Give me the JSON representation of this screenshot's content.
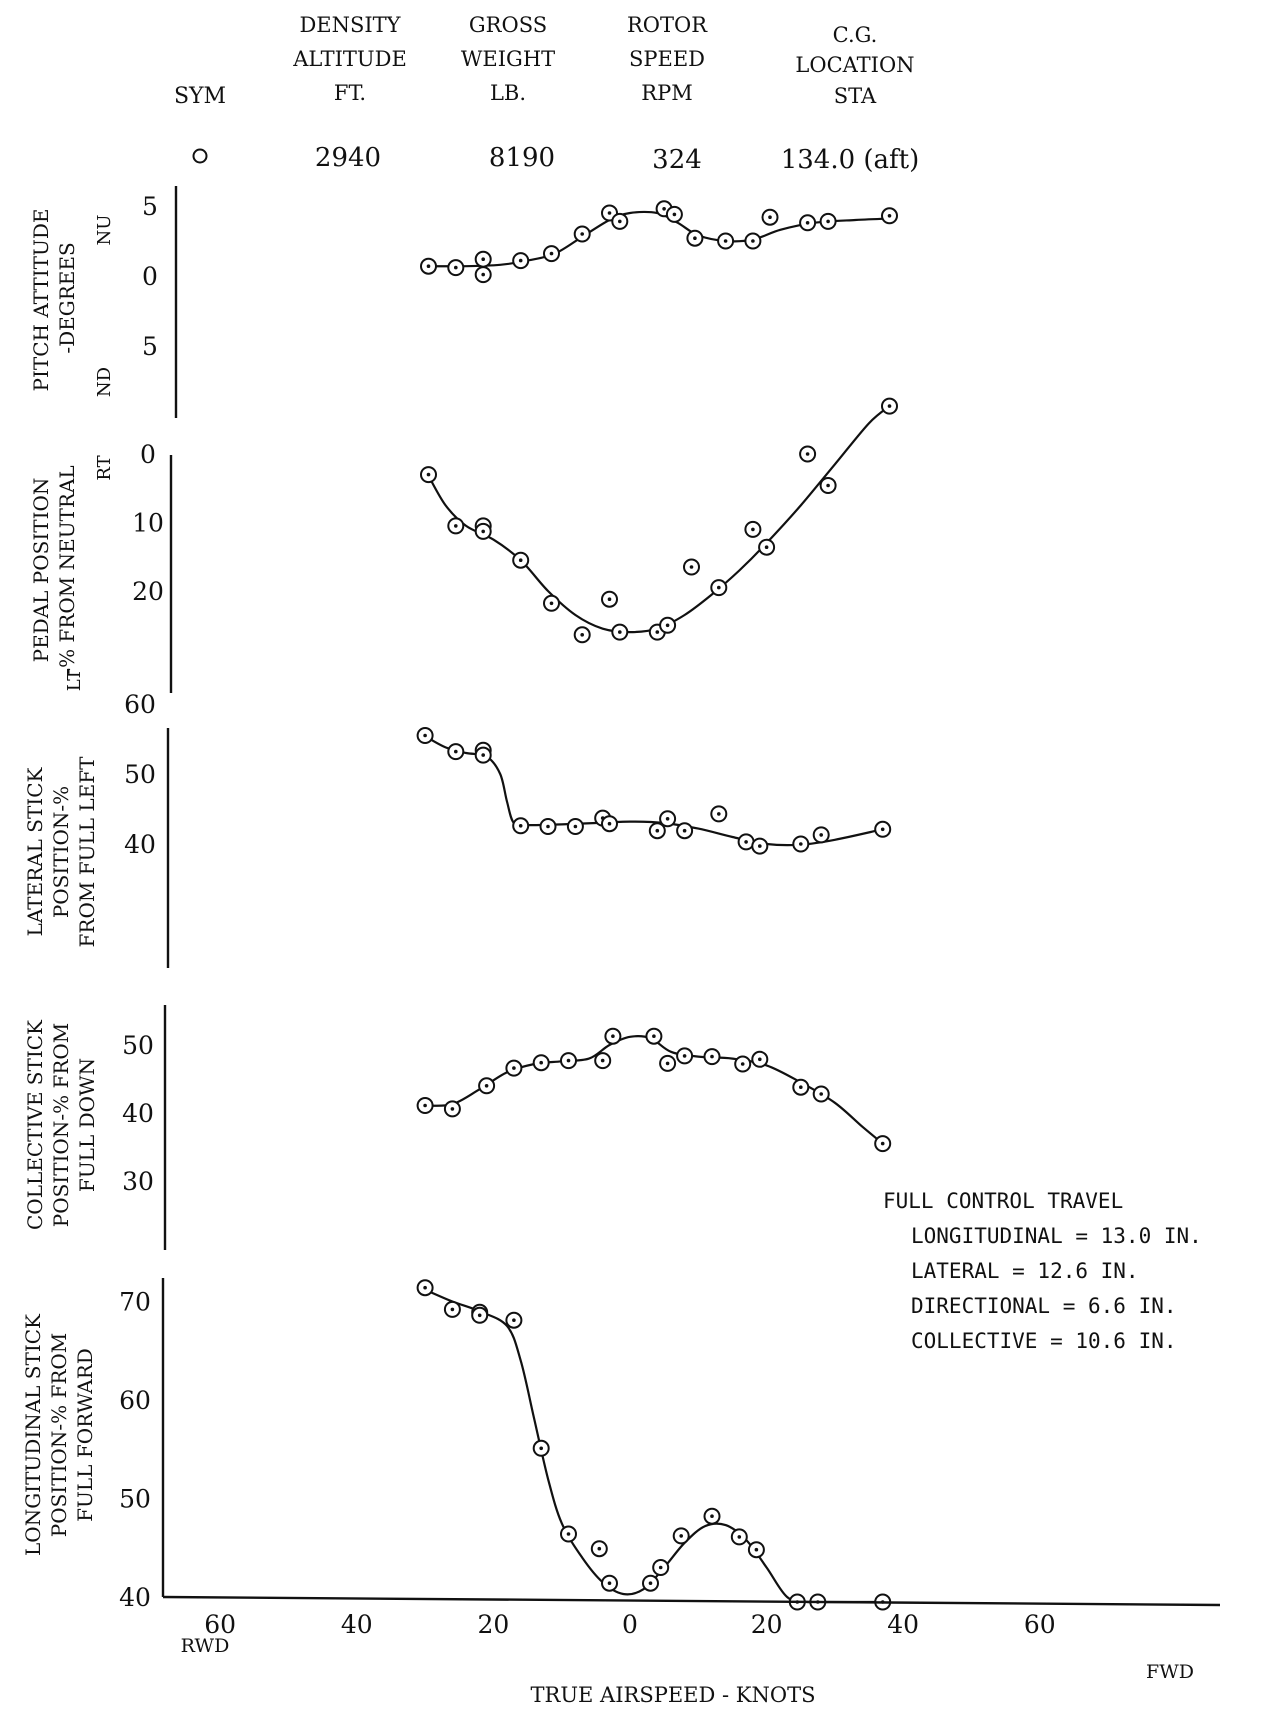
{
  "header": {
    "sym": "SYM",
    "density": [
      "DENSITY",
      "ALTITUDE",
      "FT."
    ],
    "gross": [
      "GROSS",
      "WEIGHT",
      "LB."
    ],
    "rotor": [
      "ROTOR",
      "SPEED",
      "RPM"
    ],
    "cg": [
      "C.G.",
      "LOCATION",
      "STA"
    ],
    "values": {
      "density": "2940",
      "gross": "8190",
      "rotor": "324",
      "cg": "134.0 (aft)"
    }
  },
  "x_axis": {
    "label": "TRUE AIRSPEED - KNOTS",
    "dir_left": "RWD",
    "dir_right": "FWD",
    "ticks": [
      {
        "value": -60,
        "label": "60"
      },
      {
        "value": -40,
        "label": "40"
      },
      {
        "value": -20,
        "label": "20"
      },
      {
        "value": 0,
        "label": "0"
      },
      {
        "value": 20,
        "label": "20"
      },
      {
        "value": 40,
        "label": "40"
      },
      {
        "value": 60,
        "label": "60"
      }
    ]
  },
  "note": {
    "title": "FULL CONTROL TRAVEL",
    "lines": [
      "LONGITUDINAL = 13.0 IN.",
      "LATERAL = 12.6 IN.",
      "DIRECTIONAL = 6.6 IN.",
      "COLLECTIVE = 10.6 IN."
    ]
  },
  "chart_data": [
    {
      "type": "scatter",
      "ylabel_lines": [
        "PITCH ATTITUDE",
        "-DEGREES"
      ],
      "dir_top": "NU",
      "dir_bottom": "ND",
      "ylim": [
        -6,
        7
      ],
      "yticks": [
        {
          "value": 5,
          "label": "5"
        },
        {
          "value": 0,
          "label": "0"
        },
        {
          "value": -5,
          "label": "5"
        }
      ],
      "x": [
        -29.5,
        -25.5,
        -21.5,
        -21.5,
        -16,
        -11.5,
        -7,
        -3,
        -1.5,
        5,
        6.5,
        9.5,
        14,
        18,
        20.5,
        26,
        29,
        38
      ],
      "y": [
        0.7,
        0.6,
        1.2,
        0.1,
        1.1,
        1.6,
        3,
        4.5,
        3.9,
        4.8,
        4.4,
        2.7,
        2.5,
        2.5,
        4.2,
        3.8,
        3.9,
        4.3
      ],
      "curve_x": [
        -29.5,
        -24,
        -19,
        -15,
        -11,
        -7,
        -3,
        0,
        4,
        7,
        10,
        14,
        18,
        22,
        27,
        33,
        38
      ],
      "curve_y": [
        0.7,
        0.7,
        0.8,
        1.1,
        1.6,
        2.8,
        4,
        4.5,
        4.5,
        3.8,
        2.9,
        2.5,
        2.6,
        3.3,
        3.8,
        4,
        4.1
      ]
    },
    {
      "type": "scatter",
      "ylabel_lines": [
        "PEDAL POSITION",
        "-% FROM NEUTRAL"
      ],
      "dir_top": "RT",
      "dir_bottom": "LT",
      "ylim": [
        25,
        -2
      ],
      "yticks": [
        {
          "value": 0,
          "label": "0"
        },
        {
          "value": 10,
          "label": "10"
        },
        {
          "value": 20,
          "label": "20"
        }
      ],
      "x": [
        -29.5,
        -25.5,
        -21.5,
        -21.5,
        -16,
        -11.5,
        -7,
        -3,
        -1.5,
        4,
        5.5,
        9,
        13,
        18,
        20,
        26,
        29,
        38
      ],
      "y": [
        3,
        10.5,
        10.5,
        11.3,
        15.5,
        21.8,
        26.4,
        21.2,
        26,
        26,
        25,
        16.5,
        19.5,
        11,
        13.6,
        0,
        4.6,
        -7
      ],
      "curve_x": [
        -29.5,
        -27,
        -24,
        -20,
        -16,
        -12,
        -8,
        -4,
        0,
        4,
        8,
        12,
        16,
        20,
        25,
        30,
        35,
        38
      ],
      "curve_y": [
        3.2,
        7.5,
        10.5,
        12.5,
        15.5,
        20,
        23.5,
        25.5,
        26,
        25.5,
        23.5,
        20.5,
        17,
        13,
        7.5,
        1.5,
        -4.5,
        -7
      ]
    },
    {
      "type": "scatter",
      "ylabel_lines": [
        "LATERAL STICK",
        "POSITION-%",
        "FROM FULL LEFT"
      ],
      "ylim": [
        35,
        65
      ],
      "yticks": [
        {
          "value": 60,
          "label": "60"
        },
        {
          "value": 50,
          "label": "50"
        },
        {
          "value": 40,
          "label": "40"
        }
      ],
      "x": [
        -30,
        -25.5,
        -21.5,
        -21.5,
        -16,
        -12,
        -8,
        -4,
        -3,
        4,
        5.5,
        8,
        13,
        17,
        19,
        25,
        28,
        37
      ],
      "y": [
        55.5,
        53.2,
        53.4,
        52.7,
        42.6,
        42.5,
        42.5,
        43.7,
        42.9,
        41.9,
        43.6,
        41.9,
        44.3,
        40.3,
        39.7,
        40,
        41.3,
        42.1
      ],
      "curve_x": [
        -30,
        -27,
        -24,
        -21,
        -19,
        -18,
        -17,
        -15,
        -10,
        -5,
        0,
        5,
        10,
        15,
        20,
        25,
        30,
        37
      ],
      "curve_y": [
        55.4,
        53.8,
        53,
        52.5,
        50,
        46,
        43,
        42.7,
        42.8,
        43,
        43.2,
        43,
        42.2,
        41,
        40,
        39.9,
        40.6,
        42.1
      ]
    },
    {
      "type": "scatter",
      "ylabel_lines": [
        "COLLECTIVE STICK",
        "POSITION-% FROM",
        "FULL DOWN"
      ],
      "ylim": [
        26,
        54
      ],
      "yticks": [
        {
          "value": 50,
          "label": "50"
        },
        {
          "value": 40,
          "label": "40"
        },
        {
          "value": 30,
          "label": "30"
        }
      ],
      "x": [
        -30,
        -26,
        -21,
        -17,
        -13,
        -9,
        -4,
        -2.5,
        3.5,
        5.5,
        8,
        12,
        16.5,
        19,
        25,
        28,
        37
      ],
      "y": [
        41.1,
        40.6,
        44,
        46.6,
        47.4,
        47.7,
        47.7,
        51.3,
        51.3,
        47.3,
        48.4,
        48.3,
        47.2,
        47.9,
        43.8,
        42.8,
        35.5
      ],
      "curve_x": [
        -30,
        -26,
        -22,
        -18,
        -14,
        -10,
        -6,
        -3,
        0,
        3,
        6,
        10,
        15,
        20,
        25,
        30,
        34,
        37
      ],
      "curve_y": [
        41.1,
        41.3,
        43.5,
        46,
        47.2,
        47.6,
        48,
        50,
        51.2,
        51,
        49,
        48.3,
        48,
        47,
        44.5,
        41.5,
        38,
        35.5
      ]
    },
    {
      "type": "scatter",
      "ylabel_lines": [
        "LONGITUDINAL STICK",
        "POSITION-% FROM",
        "FULL FORWARD"
      ],
      "ylim": [
        36,
        76
      ],
      "yticks": [
        {
          "value": 70,
          "label": "70"
        },
        {
          "value": 60,
          "label": "60"
        },
        {
          "value": 50,
          "label": "50"
        },
        {
          "value": 40,
          "label": "40"
        }
      ],
      "x": [
        -30,
        -26,
        -22,
        -22,
        -17,
        -13,
        -9,
        -4.5,
        -3,
        3,
        4.5,
        7.5,
        12,
        16,
        18.5,
        24.5,
        27.5,
        37
      ],
      "y": [
        71.4,
        69.2,
        68.9,
        68.6,
        68.1,
        55.1,
        46.4,
        44.9,
        41.4,
        41.4,
        43,
        46.2,
        48.2,
        46.1,
        44.8,
        39.3,
        36.3,
        37.8
      ],
      "curve_x": [
        -30,
        -26,
        -22,
        -18,
        -16,
        -14,
        -12,
        -10,
        -7,
        -4,
        -1,
        2,
        5,
        8,
        11,
        14,
        17,
        20,
        23,
        26,
        29,
        32,
        35,
        38
      ],
      "curve_y": [
        71.2,
        70,
        69,
        67.5,
        64,
        58,
        52,
        47.5,
        44,
        41.5,
        40.3,
        40.8,
        43,
        45.5,
        47.2,
        47.3,
        45.8,
        43,
        40,
        37.5,
        36.3,
        36.4,
        37.5,
        39.2
      ]
    }
  ]
}
